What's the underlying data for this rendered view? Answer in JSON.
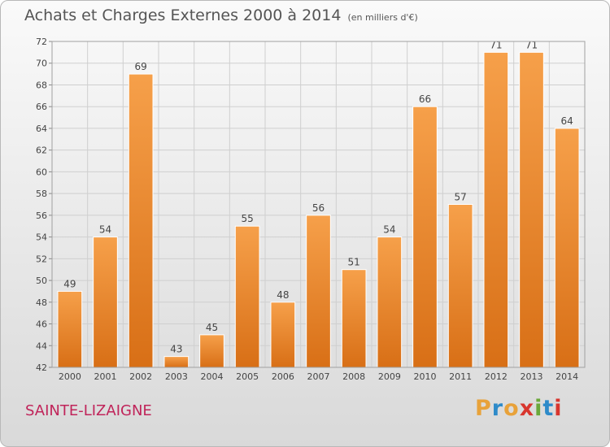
{
  "header": {
    "title": "Achats et Charges Externes 2000 à 2014",
    "unit": "(en milliers d'€)"
  },
  "footer": {
    "place": "SAINTE-LIZAIGNE",
    "brand": "Proxiti",
    "brand_colors": [
      "#e8a23a",
      "#2e8bc9",
      "#e8a23a",
      "#d8362e",
      "#6aa83a",
      "#2e8bc9",
      "#d8362e"
    ]
  },
  "chart_data": {
    "type": "bar",
    "categories": [
      "2000",
      "2001",
      "2002",
      "2003",
      "2004",
      "2005",
      "2006",
      "2007",
      "2008",
      "2009",
      "2010",
      "2011",
      "2012",
      "2013",
      "2014"
    ],
    "values": [
      49,
      54,
      69,
      43,
      45,
      55,
      48,
      56,
      51,
      54,
      66,
      57,
      71,
      71,
      64
    ],
    "ylim": [
      42,
      72
    ],
    "yticks": [
      42,
      44,
      46,
      48,
      50,
      52,
      54,
      56,
      58,
      60,
      62,
      64,
      66,
      68,
      70,
      72
    ],
    "grid": true,
    "bar_color": "#f0963a",
    "data_labels": [
      "49",
      "54",
      "69",
      "43",
      "45",
      "55",
      "48",
      "56",
      "51",
      "54",
      "66",
      "57",
      "71",
      "71",
      "64"
    ]
  }
}
